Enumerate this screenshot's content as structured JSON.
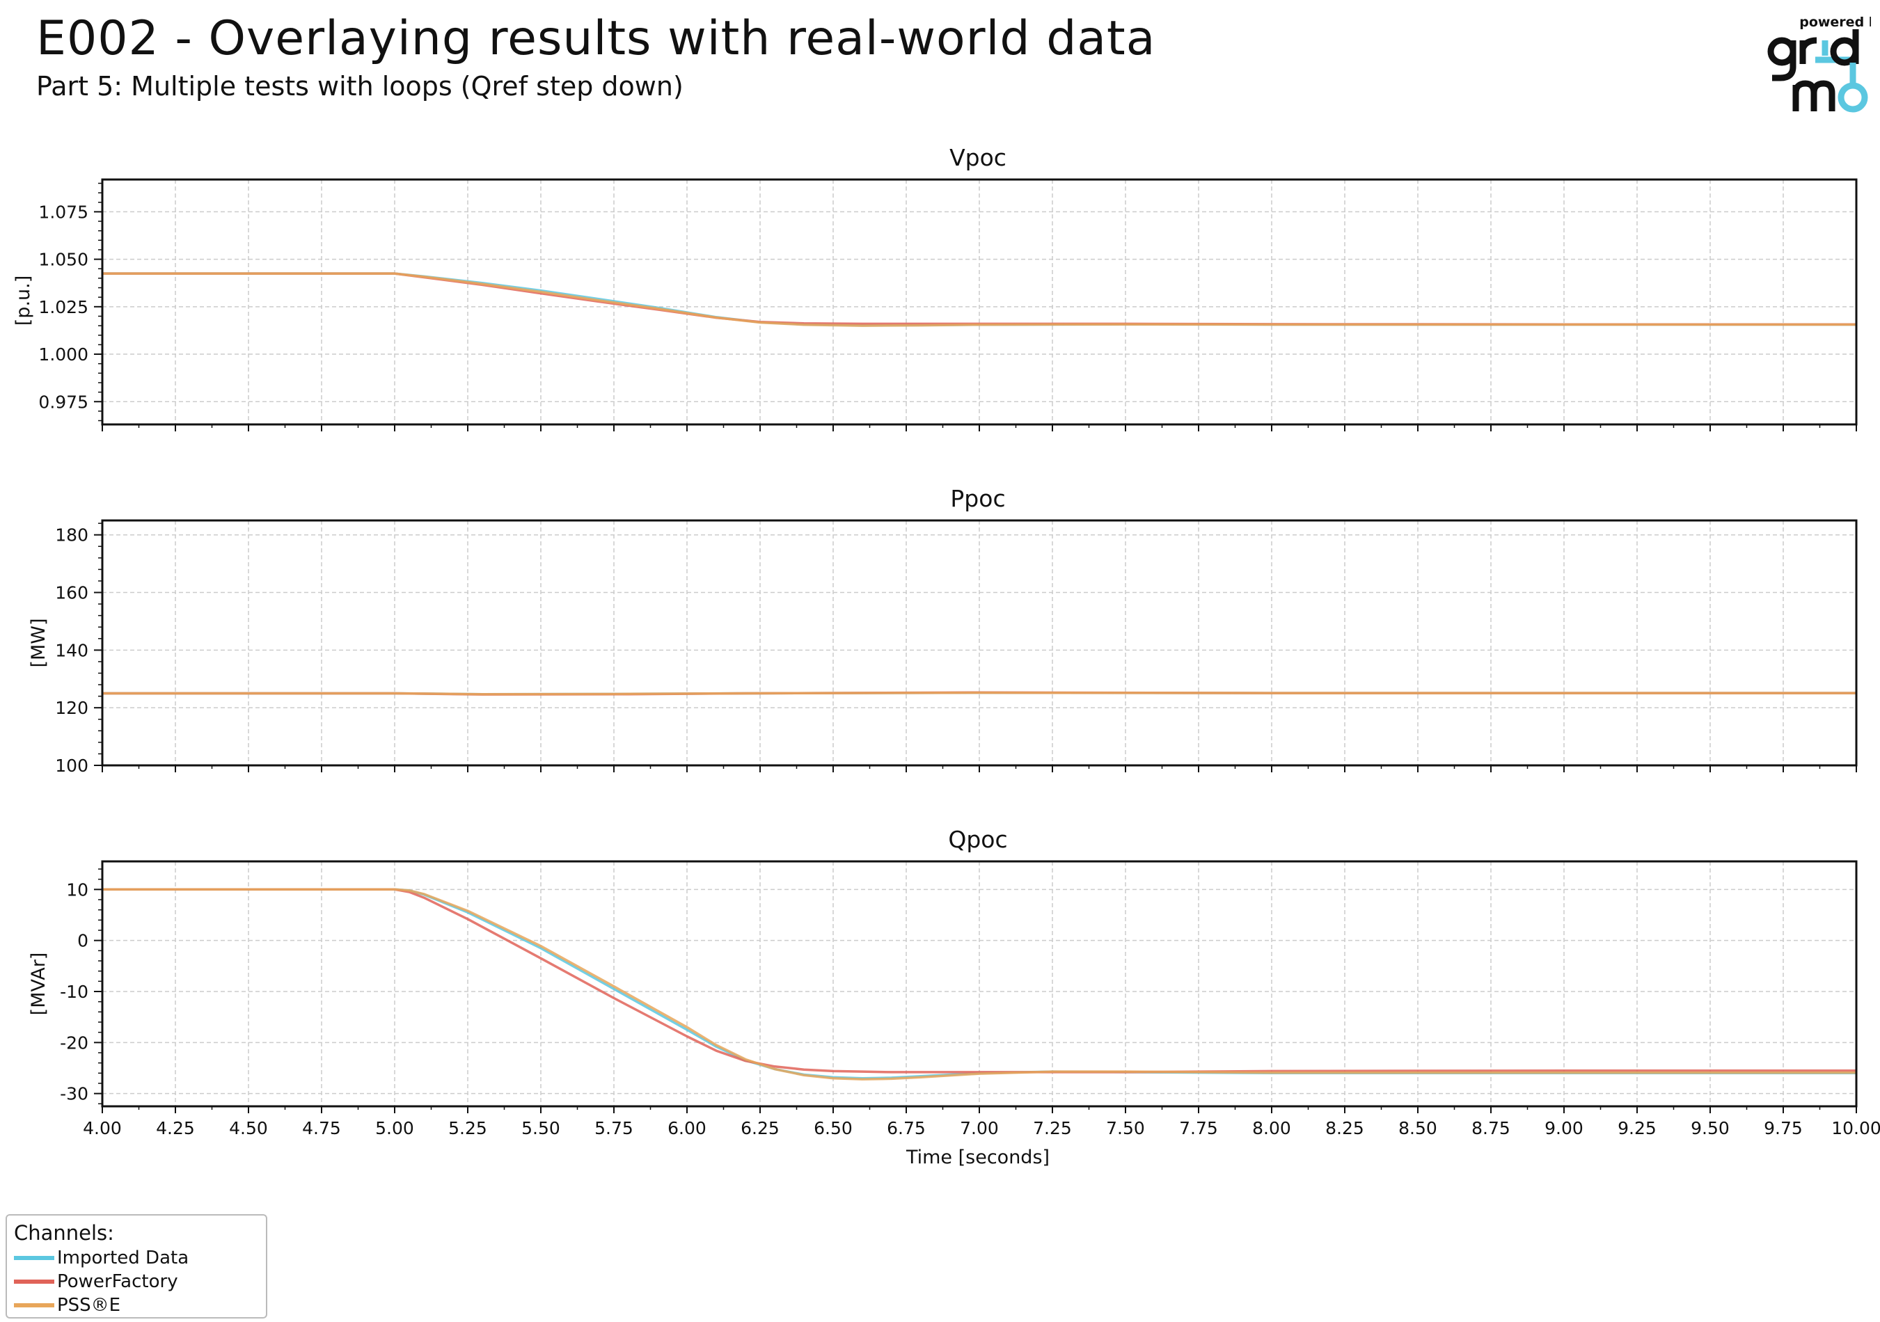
{
  "header": {
    "title": "E002 - Overlaying results with real-world data",
    "subtitle": "Part 5: Multiple tests with loops (Qref step down)"
  },
  "logo": {
    "top_text": "powered by",
    "mark_text": "gridmo",
    "colors": {
      "dark": "#111111",
      "accent": "#5bc7e0"
    }
  },
  "legend": {
    "title": "Channels:",
    "items": [
      {
        "label": "Imported Data",
        "color": "#5bc7e0"
      },
      {
        "label": "PowerFactory",
        "color": "#e06358"
      },
      {
        "label": "PSS®E",
        "color": "#e8a65a"
      }
    ]
  },
  "chart_data": [
    {
      "type": "line",
      "title": "Vpoc",
      "ylabel": "[p.u.]",
      "xlabel": "",
      "xlim": [
        4.0,
        10.0
      ],
      "ylim": [
        0.963,
        1.092
      ],
      "yticks": [
        "0.975",
        "1.000",
        "1.025",
        "1.050",
        "1.075"
      ],
      "grid": true,
      "series": [
        {
          "name": "Imported Data",
          "color": "#5bc7e0",
          "x": [
            4.0,
            5.0,
            5.1,
            5.3,
            5.5,
            5.7,
            5.9,
            6.1,
            6.25,
            6.4,
            6.6,
            6.8,
            7.0,
            7.5,
            8.0,
            9.0,
            10.0
          ],
          "y": [
            1.0425,
            1.0425,
            1.041,
            1.0375,
            1.0335,
            1.029,
            1.0245,
            1.0195,
            1.0168,
            1.0157,
            1.0152,
            1.0153,
            1.0155,
            1.0157,
            1.0156,
            1.0156,
            1.0156
          ]
        },
        {
          "name": "PowerFactory",
          "color": "#e06358",
          "x": [
            4.0,
            5.0,
            5.1,
            5.3,
            5.5,
            5.7,
            5.9,
            6.1,
            6.25,
            6.4,
            6.6,
            6.8,
            7.0,
            7.5,
            8.0,
            9.0,
            10.0
          ],
          "y": [
            1.0425,
            1.0425,
            1.0405,
            1.0365,
            1.032,
            1.0277,
            1.0235,
            1.0192,
            1.017,
            1.0162,
            1.016,
            1.016,
            1.016,
            1.016,
            1.0158,
            1.0157,
            1.0157
          ]
        },
        {
          "name": "PSS®E",
          "color": "#e8a65a",
          "x": [
            4.0,
            5.0,
            5.1,
            5.3,
            5.5,
            5.7,
            5.9,
            6.1,
            6.25,
            6.4,
            6.6,
            6.8,
            7.0,
            7.5,
            8.0,
            9.0,
            10.0
          ],
          "y": [
            1.0425,
            1.0425,
            1.0408,
            1.037,
            1.0328,
            1.0283,
            1.024,
            1.0193,
            1.0167,
            1.0155,
            1.015,
            1.0152,
            1.0155,
            1.0157,
            1.0156,
            1.0156,
            1.0156
          ]
        }
      ]
    },
    {
      "type": "line",
      "title": "Ppoc",
      "ylabel": "[MW]",
      "xlabel": "",
      "xlim": [
        4.0,
        10.0
      ],
      "ylim": [
        100,
        185
      ],
      "yticks": [
        "100",
        "120",
        "140",
        "160",
        "180"
      ],
      "grid": true,
      "series": [
        {
          "name": "Imported Data",
          "color": "#5bc7e0",
          "x": [
            4.0,
            5.0,
            5.3,
            5.8,
            6.2,
            7.0,
            8.0,
            10.0
          ],
          "y": [
            125.0,
            125.0,
            124.7,
            124.8,
            125.0,
            125.2,
            125.1,
            125.1
          ]
        },
        {
          "name": "PowerFactory",
          "color": "#e06358",
          "x": [
            4.0,
            5.0,
            5.3,
            5.8,
            6.2,
            7.0,
            8.0,
            10.0
          ],
          "y": [
            125.0,
            125.0,
            124.6,
            124.7,
            125.0,
            125.3,
            125.1,
            125.1
          ]
        },
        {
          "name": "PSS®E",
          "color": "#e8a65a",
          "x": [
            4.0,
            5.0,
            5.3,
            5.8,
            6.2,
            7.0,
            8.0,
            10.0
          ],
          "y": [
            125.0,
            125.0,
            124.7,
            124.8,
            125.0,
            125.2,
            125.1,
            125.1
          ]
        }
      ]
    },
    {
      "type": "line",
      "title": "Qpoc",
      "ylabel": "[MVAr]",
      "xlabel": "Time [seconds]",
      "xlim": [
        4.0,
        10.0
      ],
      "ylim": [
        -32.5,
        15.5
      ],
      "xticks": [
        "4.00",
        "4.25",
        "4.50",
        "4.75",
        "5.00",
        "5.25",
        "5.50",
        "5.75",
        "6.00",
        "6.25",
        "6.50",
        "6.75",
        "7.00",
        "7.25",
        "7.50",
        "7.75",
        "8.00",
        "8.25",
        "8.50",
        "8.75",
        "9.00",
        "9.25",
        "9.50",
        "9.75",
        "10.00"
      ],
      "yticks": [
        "-30",
        "-20",
        "-10",
        "0",
        "10"
      ],
      "grid": true,
      "series": [
        {
          "name": "Imported Data",
          "color": "#5bc7e0",
          "x": [
            4.0,
            5.0,
            5.05,
            5.1,
            5.25,
            5.5,
            5.75,
            6.0,
            6.1,
            6.2,
            6.3,
            6.4,
            6.5,
            6.6,
            6.7,
            6.8,
            7.0,
            7.25,
            7.5,
            8.0,
            9.0,
            10.0
          ],
          "y": [
            10.0,
            10.0,
            9.8,
            9.0,
            5.5,
            -1.5,
            -9.5,
            -17.5,
            -20.8,
            -23.5,
            -25.2,
            -26.3,
            -26.8,
            -27.0,
            -26.9,
            -26.6,
            -26.0,
            -25.7,
            -25.8,
            -26.0,
            -26.0,
            -26.0
          ]
        },
        {
          "name": "PowerFactory",
          "color": "#e06358",
          "x": [
            4.0,
            5.0,
            5.05,
            5.1,
            5.25,
            5.5,
            5.75,
            6.0,
            6.1,
            6.2,
            6.3,
            6.4,
            6.5,
            6.6,
            6.7,
            6.8,
            7.0,
            7.25,
            7.5,
            8.0,
            9.0,
            10.0
          ],
          "y": [
            10.0,
            10.0,
            9.5,
            8.4,
            4.2,
            -3.5,
            -11.3,
            -18.8,
            -21.6,
            -23.6,
            -24.7,
            -25.3,
            -25.6,
            -25.7,
            -25.8,
            -25.8,
            -25.8,
            -25.8,
            -25.8,
            -25.6,
            -25.5,
            -25.5
          ]
        },
        {
          "name": "PSS®E",
          "color": "#e8a65a",
          "x": [
            4.0,
            5.0,
            5.05,
            5.1,
            5.25,
            5.5,
            5.75,
            6.0,
            6.1,
            6.2,
            6.3,
            6.4,
            6.5,
            6.6,
            6.7,
            6.8,
            7.0,
            7.25,
            7.5,
            8.0,
            9.0,
            10.0
          ],
          "y": [
            10.0,
            10.0,
            9.8,
            9.1,
            5.8,
            -1.1,
            -9.0,
            -17.0,
            -20.5,
            -23.3,
            -25.2,
            -26.4,
            -27.0,
            -27.2,
            -27.1,
            -26.8,
            -26.1,
            -25.7,
            -25.7,
            -25.9,
            -25.9,
            -25.9
          ]
        }
      ]
    }
  ]
}
